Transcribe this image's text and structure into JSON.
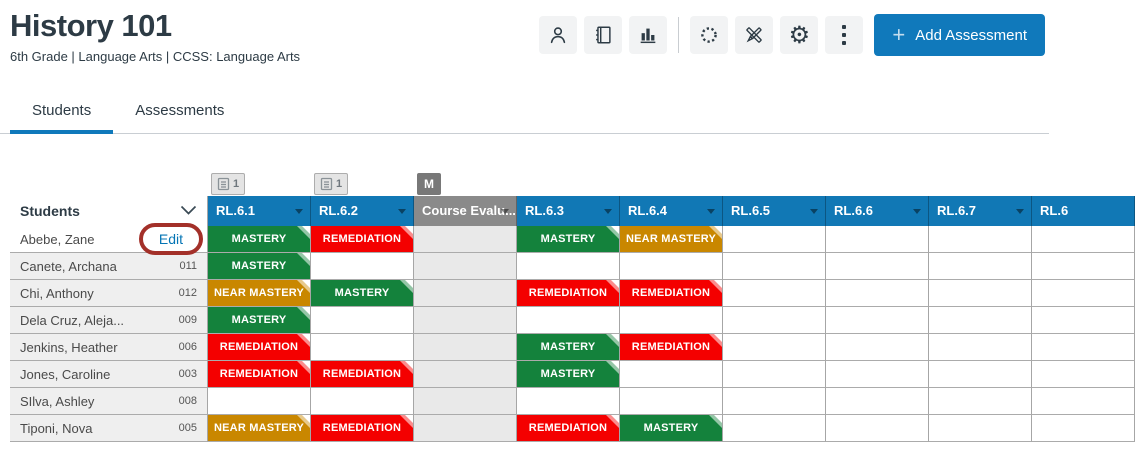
{
  "page": {
    "title": "History 101",
    "subtitle": "6th Grade | Language Arts | CCSS: Language Arts"
  },
  "toolbar": {
    "icons": [
      "user-icon",
      "notebook-icon",
      "bar-chart-icon",
      "canvas-circle-icon",
      "tools-icon",
      "gear-icon",
      "kebab-menu-icon"
    ],
    "add_assessment_label": "Add Assessment",
    "plus_glyph": "+"
  },
  "tabs": [
    {
      "label": "Students",
      "active": true
    },
    {
      "label": "Assessments",
      "active": false
    }
  ],
  "table": {
    "students_header": "Students",
    "columns": [
      {
        "label": "RL.6.1",
        "type": "standard",
        "badge": {
          "icon": "assessments-icon",
          "text": "1"
        }
      },
      {
        "label": "RL.6.2",
        "type": "standard",
        "badge": {
          "icon": "assessments-icon",
          "text": "1"
        }
      },
      {
        "label": "Course Evalu...",
        "type": "course",
        "badge": {
          "text": "M",
          "style": "dark"
        }
      },
      {
        "label": "RL.6.3",
        "type": "standard"
      },
      {
        "label": "RL.6.4",
        "type": "standard"
      },
      {
        "label": "RL.6.5",
        "type": "standard"
      },
      {
        "label": "RL.6.6",
        "type": "standard"
      },
      {
        "label": "RL.6.7",
        "type": "standard"
      },
      {
        "label": "RL.6",
        "type": "standard",
        "cut_off": true
      }
    ],
    "rows": [
      {
        "name": "Abebe, Zane",
        "id": "",
        "edit_label": "Edit",
        "annotated": true,
        "cells": [
          "MASTERY",
          "REMEDIATION",
          "",
          "MASTERY",
          "NEAR MASTERY",
          "",
          "",
          "",
          ""
        ]
      },
      {
        "name": "Canete, Archana",
        "id": "011",
        "cells": [
          "MASTERY",
          "",
          "",
          "",
          "",
          "",
          "",
          "",
          ""
        ]
      },
      {
        "name": "Chi, Anthony",
        "id": "012",
        "cells": [
          "NEAR MASTERY",
          "MASTERY",
          "",
          "REMEDIATION",
          "REMEDIATION",
          "",
          "",
          "",
          ""
        ]
      },
      {
        "name": "Dela Cruz, Aleja...",
        "id": "009",
        "cells": [
          "MASTERY",
          "",
          "",
          "",
          "",
          "",
          "",
          "",
          ""
        ]
      },
      {
        "name": "Jenkins, Heather",
        "id": "006",
        "cells": [
          "REMEDIATION",
          "",
          "",
          "MASTERY",
          "REMEDIATION",
          "",
          "",
          "",
          ""
        ]
      },
      {
        "name": "Jones, Caroline",
        "id": "003",
        "cells": [
          "REMEDIATION",
          "REMEDIATION",
          "",
          "MASTERY",
          "",
          "",
          "",
          "",
          ""
        ]
      },
      {
        "name": "SIlva, Ashley",
        "id": "008",
        "cells": [
          "",
          "",
          "",
          "",
          "",
          "",
          "",
          "",
          ""
        ]
      },
      {
        "name": "Tiponi, Nova",
        "id": "005",
        "cells": [
          "NEAR MASTERY",
          "REMEDIATION",
          "",
          "REMEDIATION",
          "MASTERY",
          "",
          "",
          "",
          ""
        ]
      }
    ],
    "status_colors": {
      "MASTERY": "#14823c",
      "REMEDIATION": "#f40000",
      "NEAR MASTERY": "#c98700"
    }
  },
  "colors": {
    "header_blue": "#1178b5",
    "button_blue": "#1079bb",
    "course_header_gray": "#8a8a8a",
    "annotation_red": "#a33029",
    "edit_link_blue": "#0575b5",
    "title_navy": "#2d3b45"
  },
  "annotation": {
    "type": "red-circle",
    "around": "Edit"
  }
}
